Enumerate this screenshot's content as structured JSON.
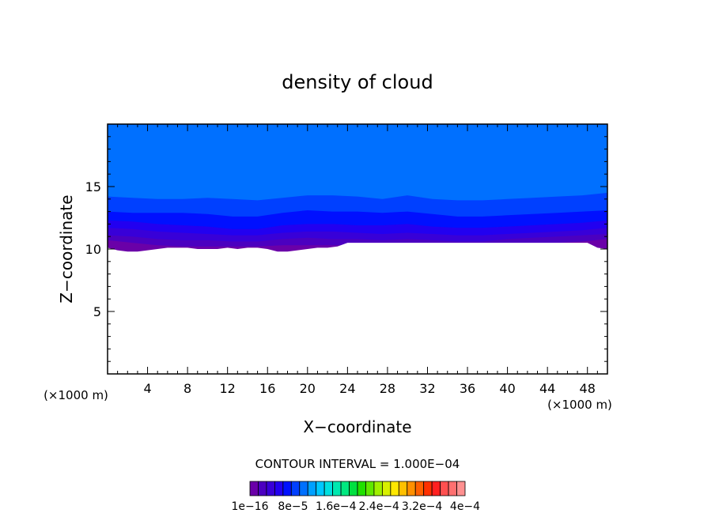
{
  "chart_data": {
    "type": "heatmap",
    "title": "density of cloud",
    "xlabel": "X−coordinate",
    "ylabel": "Z−coordinate",
    "x_unit_left": "(×1000 m)",
    "x_unit_right": "(×1000 m)",
    "xlim": [
      0,
      50
    ],
    "ylim": [
      0,
      20
    ],
    "x_ticks": [
      4,
      8,
      12,
      16,
      20,
      24,
      28,
      32,
      36,
      40,
      44,
      48
    ],
    "x_tick_labels": [
      "4",
      "8",
      "12",
      "16",
      "20",
      "24",
      "28",
      "32",
      "36",
      "40",
      "44",
      "48"
    ],
    "y_ticks": [
      5,
      10,
      15
    ],
    "y_tick_labels": [
      "5",
      "10",
      "15"
    ],
    "x_minor_step": 1,
    "y_minor_step": 1,
    "grid": false,
    "contour_interval_text": "CONTOUR INTERVAL = 1.000E−04",
    "colorbar": {
      "colors": [
        "#6a00a8",
        "#4b00c0",
        "#3800d8",
        "#2200f0",
        "#0010ff",
        "#0040ff",
        "#0070ff",
        "#00a0ff",
        "#00c8ff",
        "#00e0e0",
        "#00e8b0",
        "#00e880",
        "#00e040",
        "#20e000",
        "#60e800",
        "#a0f000",
        "#d8f000",
        "#ffe800",
        "#ffc000",
        "#ff9000",
        "#ff6000",
        "#ff3000",
        "#ff2020",
        "#ff5050",
        "#ff7070",
        "#ff9090"
      ],
      "labels": [
        "1e−16",
        "8e−5",
        "1.6e−4",
        "2.4e−4",
        "3.2e−4",
        "4e−4"
      ]
    },
    "bands": [
      {
        "color": "#0070ff",
        "top": [
          20.0,
          20.0
        ]
      },
      {
        "color": "#0040ff",
        "top": [
          14.2,
          14.1,
          14.0,
          14.0,
          14.1,
          14.0,
          13.9,
          14.1,
          14.3,
          14.3,
          14.2,
          14.0,
          14.3,
          14.0,
          13.9,
          13.9,
          14.0,
          14.1,
          14.2,
          14.3,
          14.5
        ]
      },
      {
        "color": "#0010ff",
        "top": [
          13.0,
          12.9,
          12.9,
          12.9,
          12.8,
          12.6,
          12.6,
          12.9,
          13.1,
          13.0,
          13.0,
          12.9,
          13.0,
          12.8,
          12.6,
          12.6,
          12.7,
          12.8,
          12.9,
          13.0,
          13.1
        ]
      },
      {
        "color": "#2200f0",
        "top": [
          12.3,
          12.2,
          12.0,
          11.9,
          11.8,
          11.6,
          11.6,
          11.9,
          12.0,
          12.0,
          11.9,
          11.9,
          12.0,
          11.8,
          11.7,
          11.7,
          11.8,
          11.9,
          12.0,
          12.1,
          12.3
        ]
      },
      {
        "color": "#3800d8",
        "top": [
          11.7,
          11.6,
          11.4,
          11.3,
          11.2,
          11.1,
          11.1,
          11.3,
          11.4,
          11.4,
          11.3,
          11.2,
          11.3,
          11.2,
          11.1,
          11.1,
          11.2,
          11.3,
          11.4,
          11.5,
          11.7
        ]
      },
      {
        "color": "#4b00c0",
        "top": [
          11.1,
          11.0,
          10.8,
          10.7,
          10.7,
          10.6,
          10.6,
          10.8,
          10.9,
          10.8,
          10.8,
          10.7,
          10.8,
          10.7,
          10.6,
          10.6,
          10.8,
          10.9,
          11.0,
          11.1,
          11.2
        ]
      },
      {
        "color": "#6a00a8",
        "top": [
          10.7,
          10.5,
          10.3,
          10.2,
          10.2,
          10.2,
          10.2,
          10.3,
          10.3,
          10.3,
          10.3,
          10.2,
          10.3,
          10.2,
          10.1,
          10.2,
          10.3,
          10.4,
          10.5,
          10.6,
          10.8
        ]
      }
    ],
    "cloud_base": [
      10.1,
      9.9,
      9.8,
      9.8,
      9.9,
      10.0,
      10.1,
      10.1,
      10.1,
      10.0,
      10.0,
      10.0,
      10.1,
      10.0,
      10.1,
      10.1,
      10.0,
      9.8,
      9.8,
      9.9,
      10.0,
      10.1,
      10.1,
      10.2,
      10.5,
      10.5,
      10.5,
      10.5,
      10.5,
      10.5,
      10.5,
      10.5,
      10.5,
      10.5,
      10.5,
      10.5,
      10.5,
      10.5,
      10.5,
      10.5,
      10.5,
      10.5,
      10.5,
      10.5,
      10.5,
      10.5,
      10.5,
      10.5,
      10.5,
      10.1,
      10.0
    ]
  }
}
